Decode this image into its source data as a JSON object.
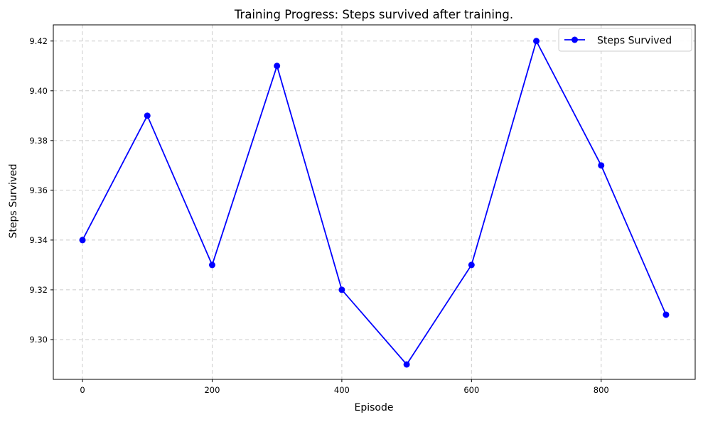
{
  "chart_data": {
    "type": "line",
    "title": "Training Progress: Steps survived after training.",
    "xlabel": "Episode",
    "ylabel": "Steps Survived",
    "x": [
      0,
      100,
      200,
      300,
      400,
      500,
      600,
      700,
      800,
      900
    ],
    "series": [
      {
        "name": "Steps Survived",
        "values": [
          9.34,
          9.39,
          9.33,
          9.41,
          9.32,
          9.29,
          9.33,
          9.42,
          9.37,
          9.31
        ],
        "color": "#0000ff",
        "marker": "circle"
      }
    ],
    "xlim": [
      -45,
      945
    ],
    "ylim": [
      9.284,
      9.4265
    ],
    "xticks": [
      0,
      200,
      400,
      600,
      800
    ],
    "yticks": [
      9.3,
      9.32,
      9.34,
      9.36,
      9.38,
      9.4,
      9.42
    ],
    "xtick_labels": [
      "0",
      "200",
      "400",
      "600",
      "800"
    ],
    "ytick_labels": [
      "9.30",
      "9.32",
      "9.34",
      "9.36",
      "9.38",
      "9.40",
      "9.42"
    ],
    "grid": true,
    "grid_style": "dashed",
    "legend_position": "top-right"
  }
}
